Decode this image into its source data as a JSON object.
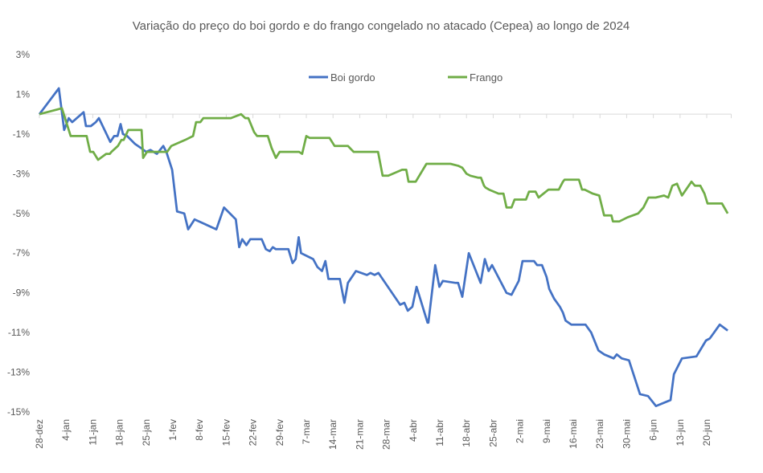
{
  "chart_data": {
    "type": "line",
    "title": "Variação do preço do boi gordo e do frango congelado no atacado (Cepea) ao longo de 2024",
    "xlabel": "",
    "ylabel": "",
    "ylim": [
      -15,
      3
    ],
    "yticks": [
      3,
      1,
      -1,
      -3,
      -5,
      -7,
      -9,
      -11,
      -13,
      -15
    ],
    "ytick_labels": [
      "3%",
      "1%",
      "-1%",
      "-3%",
      "-5%",
      "-7%",
      "-9%",
      "-11%",
      "-13%",
      "-15%"
    ],
    "x_unit": "days since 28-dez",
    "xlim": [
      0,
      181
    ],
    "xtick_labels": [
      "28-dez",
      "4-jan",
      "11-jan",
      "18-jan",
      "25-jan",
      "1-fev",
      "8-fev",
      "15-fev",
      "22-fev",
      "29-fev",
      "7-mar",
      "14-mar",
      "21-mar",
      "28-mar",
      "4-abr",
      "11-abr",
      "18-abr",
      "25-abr",
      "2-mai",
      "9-mai",
      "16-mai",
      "23-mai",
      "30-mai",
      "6-jun",
      "13-jun",
      "20-jun"
    ],
    "xtick_step_days": 7,
    "grid": false,
    "legend_position": "top-center",
    "series": [
      {
        "name": "Boi gordo",
        "color": "#4472c4",
        "points": [
          [
            0,
            0
          ],
          [
            5.1,
            1.3
          ],
          [
            6.5,
            -0.8
          ],
          [
            7.7,
            -0.2
          ],
          [
            8.6,
            -0.4
          ],
          [
            11.6,
            0.1
          ],
          [
            12.2,
            -0.6
          ],
          [
            13.5,
            -0.6
          ],
          [
            14.8,
            -0.4
          ],
          [
            15.6,
            -0.2
          ],
          [
            18.6,
            -1.4
          ],
          [
            19.6,
            -1.1
          ],
          [
            20.5,
            -1.1
          ],
          [
            21.3,
            -0.5
          ],
          [
            21.9,
            -1.0
          ],
          [
            23.0,
            -1.1
          ],
          [
            25.1,
            -1.5
          ],
          [
            26.6,
            -1.7
          ],
          [
            28.0,
            -1.9
          ],
          [
            29.1,
            -1.8
          ],
          [
            30.8,
            -2.0
          ],
          [
            32.5,
            -1.6
          ],
          [
            33.3,
            -1.9
          ],
          [
            34.8,
            -2.8
          ],
          [
            36.1,
            -4.9
          ],
          [
            38.0,
            -5.0
          ],
          [
            39.0,
            -5.8
          ],
          [
            40.7,
            -5.3
          ],
          [
            46.4,
            -5.8
          ],
          [
            48.4,
            -4.7
          ],
          [
            51.5,
            -5.3
          ],
          [
            52.4,
            -6.7
          ],
          [
            53.2,
            -6.3
          ],
          [
            54.3,
            -6.6
          ],
          [
            55.3,
            -6.3
          ],
          [
            58.3,
            -6.3
          ],
          [
            59.4,
            -6.8
          ],
          [
            60.4,
            -6.9
          ],
          [
            61.2,
            -6.7
          ],
          [
            62.0,
            -6.8
          ],
          [
            65.3,
            -6.8
          ],
          [
            66.4,
            -7.5
          ],
          [
            67.2,
            -7.3
          ],
          [
            68.0,
            -6.2
          ],
          [
            68.6,
            -7.0
          ],
          [
            71.8,
            -7.3
          ],
          [
            72.9,
            -7.7
          ],
          [
            74.1,
            -7.9
          ],
          [
            75.0,
            -7.4
          ],
          [
            75.8,
            -8.3
          ],
          [
            78.8,
            -8.3
          ],
          [
            80.0,
            -9.5
          ],
          [
            80.9,
            -8.5
          ],
          [
            83.0,
            -7.9
          ],
          [
            85.9,
            -8.1
          ],
          [
            86.8,
            -8.0
          ],
          [
            87.9,
            -8.1
          ],
          [
            88.9,
            -8.0
          ],
          [
            94.6,
            -9.6
          ],
          [
            95.7,
            -9.5
          ],
          [
            96.6,
            -9.9
          ],
          [
            97.8,
            -9.7
          ],
          [
            98.9,
            -8.7
          ],
          [
            101.8,
            -10.5
          ],
          [
            102.0,
            -10.5
          ],
          [
            103.8,
            -7.6
          ],
          [
            104.9,
            -8.7
          ],
          [
            105.8,
            -8.4
          ],
          [
            109.2,
            -8.5
          ],
          [
            109.8,
            -8.5
          ],
          [
            110.9,
            -9.2
          ],
          [
            112.6,
            -7.0
          ],
          [
            115.7,
            -8.5
          ],
          [
            116.8,
            -7.3
          ],
          [
            117.8,
            -7.9
          ],
          [
            118.7,
            -7.6
          ],
          [
            122.5,
            -9.0
          ],
          [
            123.8,
            -9.1
          ],
          [
            125.7,
            -8.4
          ],
          [
            126.7,
            -7.4
          ],
          [
            129.7,
            -7.4
          ],
          [
            130.5,
            -7.6
          ],
          [
            131.8,
            -7.6
          ],
          [
            133.0,
            -8.2
          ],
          [
            133.7,
            -8.8
          ],
          [
            135.0,
            -9.3
          ],
          [
            136.5,
            -9.7
          ],
          [
            137.3,
            -10.0
          ],
          [
            138.0,
            -10.4
          ],
          [
            139.5,
            -10.6
          ],
          [
            143.2,
            -10.6
          ],
          [
            144.7,
            -11.0
          ],
          [
            146.6,
            -11.9
          ],
          [
            148.1,
            -12.1
          ],
          [
            150.6,
            -12.3
          ],
          [
            151.4,
            -12.1
          ],
          [
            152.7,
            -12.3
          ],
          [
            154.6,
            -12.4
          ],
          [
            157.5,
            -14.1
          ],
          [
            159.6,
            -14.2
          ],
          [
            161.7,
            -14.7
          ],
          [
            165.5,
            -14.4
          ],
          [
            166.4,
            -13.1
          ],
          [
            168.5,
            -12.3
          ],
          [
            172.3,
            -12.2
          ],
          [
            174.8,
            -11.4
          ],
          [
            175.8,
            -11.3
          ],
          [
            178.4,
            -10.6
          ],
          [
            180.5,
            -10.9
          ]
        ]
      },
      {
        "name": "Frango",
        "color": "#70ad47",
        "points": [
          [
            0,
            0
          ],
          [
            5.9,
            0.3
          ],
          [
            8.2,
            -1.1
          ],
          [
            10.8,
            -1.1
          ],
          [
            12.4,
            -1.1
          ],
          [
            12.6,
            -1.3
          ],
          [
            13.3,
            -1.9
          ],
          [
            14.1,
            -1.9
          ],
          [
            15.4,
            -2.3
          ],
          [
            17.5,
            -2.0
          ],
          [
            18.5,
            -2.0
          ],
          [
            18.9,
            -1.9
          ],
          [
            20.6,
            -1.6
          ],
          [
            21.5,
            -1.3
          ],
          [
            22.1,
            -1.3
          ],
          [
            23.3,
            -0.8
          ],
          [
            26.1,
            -0.8
          ],
          [
            26.8,
            -0.8
          ],
          [
            27.2,
            -2.2
          ],
          [
            28.2,
            -1.9
          ],
          [
            29.3,
            -1.9
          ],
          [
            33.5,
            -1.9
          ],
          [
            34.6,
            -1.6
          ],
          [
            38.2,
            -1.3
          ],
          [
            40.3,
            -1.1
          ],
          [
            41.1,
            -0.4
          ],
          [
            42.2,
            -0.4
          ],
          [
            43.0,
            -0.2
          ],
          [
            50.2,
            -0.2
          ],
          [
            52.9,
            0.0
          ],
          [
            54.0,
            -0.2
          ],
          [
            54.8,
            -0.2
          ],
          [
            56.3,
            -0.9
          ],
          [
            57.1,
            -1.1
          ],
          [
            59.9,
            -1.1
          ],
          [
            60.9,
            -1.7
          ],
          [
            62.0,
            -2.2
          ],
          [
            63.0,
            -1.9
          ],
          [
            68.1,
            -1.9
          ],
          [
            68.9,
            -2.0
          ],
          [
            70.0,
            -1.1
          ],
          [
            70.9,
            -1.2
          ],
          [
            76.1,
            -1.2
          ],
          [
            77.4,
            -1.6
          ],
          [
            80.9,
            -1.6
          ],
          [
            82.4,
            -1.9
          ],
          [
            88.8,
            -1.9
          ],
          [
            90.0,
            -3.1
          ],
          [
            91.5,
            -3.1
          ],
          [
            95.1,
            -2.8
          ],
          [
            96.2,
            -2.8
          ],
          [
            96.8,
            -3.4
          ],
          [
            98.7,
            -3.4
          ],
          [
            101.5,
            -2.5
          ],
          [
            103.5,
            -2.5
          ],
          [
            107.8,
            -2.5
          ],
          [
            109.8,
            -2.6
          ],
          [
            110.9,
            -2.7
          ],
          [
            112.0,
            -3.0
          ],
          [
            113.0,
            -3.1
          ],
          [
            115.1,
            -3.2
          ],
          [
            115.8,
            -3.2
          ],
          [
            116.6,
            -3.6
          ],
          [
            117.0,
            -3.7
          ],
          [
            117.9,
            -3.8
          ],
          [
            120.4,
            -4.0
          ],
          [
            121.7,
            -4.0
          ],
          [
            122.5,
            -4.7
          ],
          [
            123.8,
            -4.7
          ],
          [
            124.6,
            -4.3
          ],
          [
            127.6,
            -4.3
          ],
          [
            128.4,
            -3.9
          ],
          [
            130.1,
            -3.9
          ],
          [
            130.9,
            -4.2
          ],
          [
            133.5,
            -3.8
          ],
          [
            135.2,
            -3.8
          ],
          [
            136.2,
            -3.8
          ],
          [
            137.3,
            -3.4
          ],
          [
            137.7,
            -3.3
          ],
          [
            137.9,
            -3.3
          ],
          [
            141.5,
            -3.3
          ],
          [
            142.3,
            -3.8
          ],
          [
            143.0,
            -3.8
          ],
          [
            145.1,
            -4.0
          ],
          [
            146.8,
            -4.1
          ],
          [
            148.1,
            -5.1
          ],
          [
            150.0,
            -5.1
          ],
          [
            150.4,
            -5.4
          ],
          [
            150.9,
            -5.4
          ],
          [
            152.1,
            -5.4
          ],
          [
            154.2,
            -5.2
          ],
          [
            157.0,
            -5.0
          ],
          [
            158.4,
            -4.7
          ],
          [
            159.7,
            -4.2
          ],
          [
            161.6,
            -4.2
          ],
          [
            163.8,
            -4.1
          ],
          [
            164.9,
            -4.2
          ],
          [
            166.0,
            -3.6
          ],
          [
            167.2,
            -3.5
          ],
          [
            168.5,
            -4.1
          ],
          [
            171.0,
            -3.4
          ],
          [
            171.9,
            -3.6
          ],
          [
            173.3,
            -3.6
          ],
          [
            174.4,
            -4.0
          ],
          [
            175.2,
            -4.5
          ],
          [
            179.0,
            -4.5
          ],
          [
            180.5,
            -5.0
          ]
        ]
      }
    ]
  }
}
